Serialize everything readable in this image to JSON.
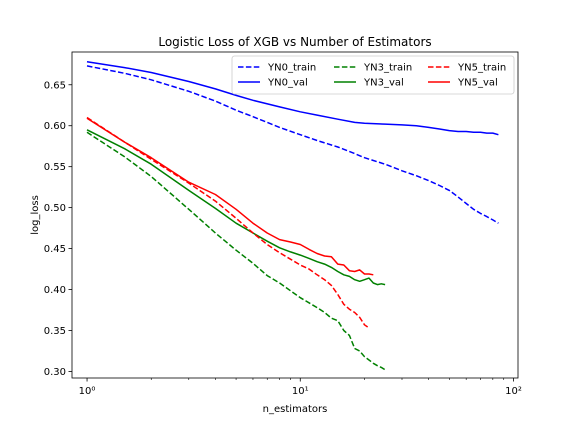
{
  "chart_data": {
    "type": "line",
    "title": "Logistic Loss of XGB vs Number of Estimators",
    "xlabel": "n_estimators",
    "ylabel": "log_loss",
    "xscale": "log",
    "xlim": [
      0.85,
      105
    ],
    "ylim": [
      0.292,
      0.69
    ],
    "x_ticks": [
      1,
      10,
      100
    ],
    "x_tick_labels": [
      "10⁰",
      "10¹",
      "10²"
    ],
    "y_ticks": [
      0.3,
      0.35,
      0.4,
      0.45,
      0.5,
      0.55,
      0.6,
      0.65
    ],
    "y_tick_labels": [
      "0.30",
      "0.35",
      "0.40",
      "0.45",
      "0.50",
      "0.55",
      "0.60",
      "0.65"
    ],
    "grid": false,
    "legend_position": "top-right",
    "legend_columns": 3,
    "series": [
      {
        "name": "YN0_train",
        "color": "#0000ff",
        "dash": "dashed",
        "x": [
          1,
          1.5,
          2,
          3,
          4,
          5,
          6,
          8,
          10,
          12,
          15,
          18,
          20,
          25,
          30,
          35,
          40,
          45,
          50,
          55,
          60,
          65,
          70,
          75,
          80,
          85
        ],
        "y": [
          0.673,
          0.664,
          0.656,
          0.642,
          0.63,
          0.619,
          0.611,
          0.598,
          0.589,
          0.582,
          0.574,
          0.566,
          0.561,
          0.553,
          0.545,
          0.539,
          0.533,
          0.527,
          0.521,
          0.513,
          0.505,
          0.498,
          0.493,
          0.489,
          0.485,
          0.481
        ]
      },
      {
        "name": "YN0_val",
        "color": "#0000ff",
        "dash": "solid",
        "x": [
          1,
          1.5,
          2,
          3,
          4,
          5,
          6,
          8,
          10,
          12,
          15,
          18,
          20,
          25,
          30,
          35,
          40,
          45,
          50,
          55,
          60,
          65,
          70,
          75,
          80,
          85
        ],
        "y": [
          0.678,
          0.671,
          0.665,
          0.654,
          0.645,
          0.637,
          0.631,
          0.623,
          0.617,
          0.613,
          0.608,
          0.604,
          0.603,
          0.602,
          0.601,
          0.6,
          0.598,
          0.596,
          0.594,
          0.593,
          0.593,
          0.592,
          0.592,
          0.591,
          0.591,
          0.589
        ]
      },
      {
        "name": "YN3_train",
        "color": "#008000",
        "dash": "dashed",
        "x": [
          1,
          1.5,
          2,
          3,
          4,
          5,
          6,
          7,
          8,
          10,
          12,
          13,
          14,
          15,
          16,
          17,
          18,
          19,
          20,
          21,
          22,
          23,
          24,
          25
        ],
        "y": [
          0.592,
          0.562,
          0.538,
          0.498,
          0.469,
          0.448,
          0.432,
          0.417,
          0.408,
          0.39,
          0.378,
          0.372,
          0.365,
          0.362,
          0.35,
          0.344,
          0.328,
          0.325,
          0.318,
          0.314,
          0.31,
          0.307,
          0.305,
          0.302
        ]
      },
      {
        "name": "YN3_val",
        "color": "#008000",
        "dash": "solid",
        "x": [
          1,
          1.5,
          2,
          3,
          4,
          5,
          6,
          7,
          8,
          9,
          10,
          11,
          12,
          13,
          14,
          15,
          16,
          17,
          18,
          19,
          20,
          21,
          22,
          23,
          24,
          25
        ],
        "y": [
          0.595,
          0.572,
          0.553,
          0.521,
          0.499,
          0.481,
          0.469,
          0.459,
          0.451,
          0.446,
          0.442,
          0.438,
          0.434,
          0.431,
          0.427,
          0.422,
          0.418,
          0.416,
          0.412,
          0.41,
          0.412,
          0.414,
          0.408,
          0.406,
          0.407,
          0.406
        ]
      },
      {
        "name": "YN5_train",
        "color": "#ff0000",
        "dash": "dashed",
        "x": [
          1,
          1.5,
          2,
          3,
          4,
          5,
          6,
          7,
          8,
          9,
          10,
          11,
          12,
          13,
          14,
          15,
          16,
          17,
          18,
          19,
          20,
          21
        ],
        "y": [
          0.61,
          0.58,
          0.559,
          0.53,
          0.508,
          0.487,
          0.469,
          0.455,
          0.445,
          0.437,
          0.43,
          0.425,
          0.418,
          0.412,
          0.405,
          0.394,
          0.382,
          0.376,
          0.372,
          0.366,
          0.357,
          0.353
        ]
      },
      {
        "name": "YN5_val",
        "color": "#ff0000",
        "dash": "solid",
        "x": [
          1,
          1.5,
          2,
          3,
          4,
          5,
          6,
          7,
          8,
          9,
          10,
          11,
          12,
          13,
          14,
          15,
          16,
          17,
          18,
          19,
          20,
          21,
          22
        ],
        "y": [
          0.609,
          0.58,
          0.561,
          0.531,
          0.516,
          0.498,
          0.481,
          0.469,
          0.461,
          0.458,
          0.455,
          0.449,
          0.444,
          0.441,
          0.44,
          0.431,
          0.43,
          0.423,
          0.422,
          0.424,
          0.419,
          0.419,
          0.418
        ]
      }
    ]
  }
}
